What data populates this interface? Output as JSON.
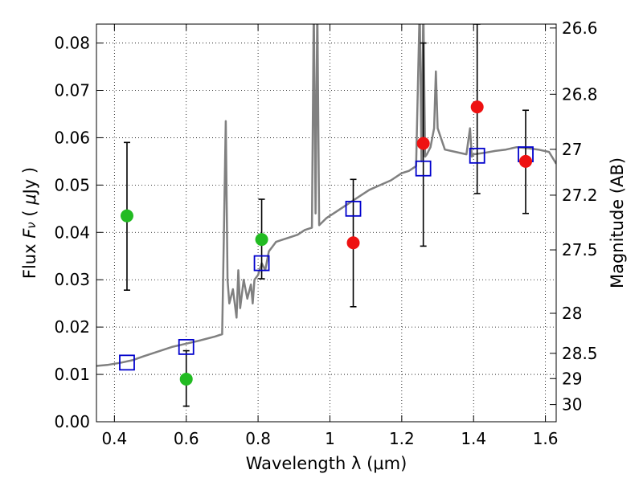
{
  "chart_data": {
    "type": "scatter",
    "xlabel": "Wavelength  λ (μm)",
    "ylabel_parts": [
      "Flux  ",
      "F",
      "ν",
      "  (  ",
      "μ",
      "Jy )"
    ],
    "y2label": "Magnitude (AB)",
    "xlim": [
      0.35,
      1.63
    ],
    "ylim": [
      0.0,
      0.084
    ],
    "grid": true,
    "x_ticks": [
      {
        "value": 0.4,
        "label": "0.4"
      },
      {
        "value": 0.6,
        "label": "0.6"
      },
      {
        "value": 0.8,
        "label": "0.8"
      },
      {
        "value": 1.0,
        "label": "1"
      },
      {
        "value": 1.2,
        "label": "1.2"
      },
      {
        "value": 1.4,
        "label": "1.4"
      },
      {
        "value": 1.6,
        "label": "1.6"
      }
    ],
    "y_ticks": [
      {
        "value": 0.0,
        "label": "0.00"
      },
      {
        "value": 0.01,
        "label": "0.01"
      },
      {
        "value": 0.02,
        "label": "0.02"
      },
      {
        "value": 0.03,
        "label": "0.03"
      },
      {
        "value": 0.04,
        "label": "0.04"
      },
      {
        "value": 0.05,
        "label": "0.05"
      },
      {
        "value": 0.06,
        "label": "0.06"
      },
      {
        "value": 0.07,
        "label": "0.07"
      },
      {
        "value": 0.08,
        "label": "0.08"
      }
    ],
    "y2_ticks": [
      {
        "value": 26.6,
        "label": "26.6"
      },
      {
        "value": 26.8,
        "label": "26.8"
      },
      {
        "value": 27.0,
        "label": "27"
      },
      {
        "value": 27.2,
        "label": "27.2"
      },
      {
        "value": 27.5,
        "label": "27.5"
      },
      {
        "value": 28.0,
        "label": "28"
      },
      {
        "value": 28.5,
        "label": "28.5"
      },
      {
        "value": 29.0,
        "label": "29"
      },
      {
        "value": 30.0,
        "label": "30"
      }
    ],
    "model_spectrum": {
      "color": "#808080",
      "x": [
        0.35,
        0.38,
        0.42,
        0.45,
        0.48,
        0.52,
        0.56,
        0.6,
        0.64,
        0.68,
        0.7,
        0.705,
        0.71,
        0.715,
        0.72,
        0.73,
        0.74,
        0.745,
        0.75,
        0.76,
        0.77,
        0.78,
        0.785,
        0.79,
        0.8,
        0.81,
        0.82,
        0.83,
        0.84,
        0.85,
        0.87,
        0.89,
        0.91,
        0.93,
        0.95,
        0.955,
        0.96,
        0.965,
        0.97,
        0.99,
        1.02,
        1.05,
        1.08,
        1.11,
        1.14,
        1.17,
        1.2,
        1.22,
        1.24,
        1.25,
        1.255,
        1.26,
        1.265,
        1.27,
        1.28,
        1.29,
        1.295,
        1.3,
        1.32,
        1.35,
        1.38,
        1.39,
        1.395,
        1.4,
        1.43,
        1.46,
        1.49,
        1.52,
        1.55,
        1.58,
        1.61,
        1.63
      ],
      "y": [
        0.0118,
        0.012,
        0.0125,
        0.013,
        0.0138,
        0.0148,
        0.0158,
        0.0165,
        0.0172,
        0.018,
        0.0185,
        0.04,
        0.0635,
        0.03,
        0.025,
        0.028,
        0.022,
        0.032,
        0.024,
        0.03,
        0.026,
        0.029,
        0.025,
        0.03,
        0.031,
        0.0335,
        0.032,
        0.036,
        0.037,
        0.038,
        0.0385,
        0.039,
        0.0395,
        0.0405,
        0.041,
        0.088,
        0.044,
        0.088,
        0.0415,
        0.043,
        0.0445,
        0.046,
        0.0475,
        0.049,
        0.05,
        0.051,
        0.0525,
        0.053,
        0.054,
        0.088,
        0.055,
        0.088,
        0.056,
        0.0565,
        0.058,
        0.062,
        0.074,
        0.062,
        0.0575,
        0.057,
        0.0565,
        0.062,
        0.056,
        0.0565,
        0.0568,
        0.0572,
        0.0575,
        0.058,
        0.0578,
        0.0575,
        0.057,
        0.0545
      ]
    },
    "model_photometry": {
      "color": "#0000cc",
      "x": [
        0.435,
        0.6,
        0.81,
        1.065,
        1.26,
        1.41,
        1.545
      ],
      "y": [
        0.0125,
        0.0158,
        0.0335,
        0.045,
        0.0535,
        0.0562,
        0.0565
      ]
    },
    "detections": {
      "color": "#22bb22",
      "points": [
        {
          "x": 0.435,
          "y": 0.0435,
          "err_low": 0.0278,
          "err_high": 0.059
        },
        {
          "x": 0.6,
          "y": 0.009,
          "err_low": 0.0033,
          "err_high": 0.015
        },
        {
          "x": 0.81,
          "y": 0.0385,
          "err_low": 0.0302,
          "err_high": 0.047
        }
      ]
    },
    "red_points": {
      "color": "#ee1111",
      "points": [
        {
          "x": 1.065,
          "y": 0.0378,
          "err_low": 0.0243,
          "err_high": 0.0512
        },
        {
          "x": 1.26,
          "y": 0.0588,
          "err_low": 0.0371,
          "err_high": 0.08
        },
        {
          "x": 1.41,
          "y": 0.0665,
          "err_low": 0.0482,
          "err_high": 0.084
        },
        {
          "x": 1.545,
          "y": 0.055,
          "err_low": 0.044,
          "err_high": 0.0658
        }
      ]
    }
  }
}
